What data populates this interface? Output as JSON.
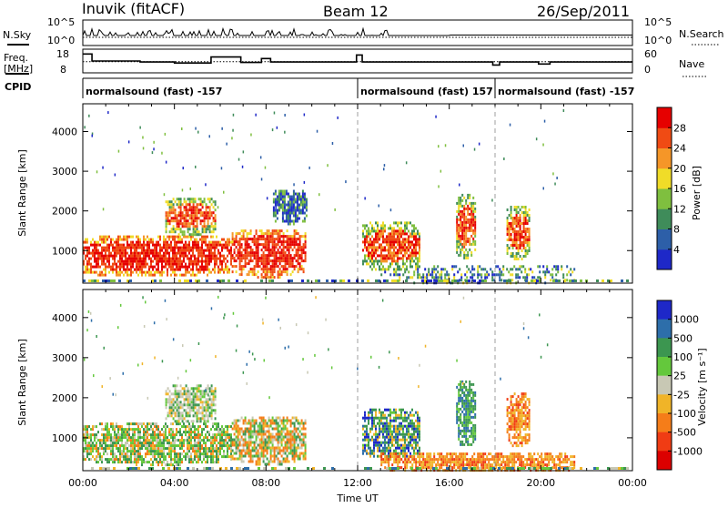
{
  "header": {
    "station": "Inuvik (fitACF)",
    "beam": "Beam 12",
    "date": "26/Sep/2011"
  },
  "noise_panel": {
    "left_label": "N.Sky",
    "right_label": "N.Search",
    "left_ticks": [
      "10^5",
      "10^0"
    ],
    "right_ticks": [
      "10^5",
      "10^0"
    ]
  },
  "freq_panel": {
    "left_label_1": "Freq.",
    "left_label_2": "[MHz]",
    "right_label": "Nave",
    "left_ticks": [
      "18",
      "8"
    ],
    "right_ticks": [
      "60",
      "0"
    ],
    "freq_scale": [
      8,
      18
    ],
    "nave_scale": [
      0,
      60
    ],
    "freq_steps": [
      {
        "t": 0.0,
        "v": 16.5
      },
      {
        "t": 0.4,
        "v": 13.0
      },
      {
        "t": 2.5,
        "v": 12.5
      },
      {
        "t": 4.0,
        "v": 12.0
      },
      {
        "t": 5.6,
        "v": 15.0
      },
      {
        "t": 6.9,
        "v": 12.3
      },
      {
        "t": 7.8,
        "v": 14.2
      },
      {
        "t": 8.2,
        "v": 12.5
      },
      {
        "t": 11.95,
        "v": 16.0
      },
      {
        "t": 12.2,
        "v": 12.5
      },
      {
        "t": 17.9,
        "v": 11.0
      },
      {
        "t": 18.2,
        "v": 12.5
      },
      {
        "t": 19.9,
        "v": 11.5
      },
      {
        "t": 20.4,
        "v": 12.5
      },
      {
        "t": 24.0,
        "v": 12.5
      }
    ],
    "nave_level": 28
  },
  "cpid": {
    "label": "CPID",
    "segments": [
      {
        "text": "normalsound (fast) -157",
        "start": 0.0
      },
      {
        "text": "normalsound (fast) 157",
        "start": 12.0
      },
      {
        "text": "normalsound (fast) -157",
        "start": 18.0
      }
    ]
  },
  "chart_data": [
    {
      "type": "heatmap",
      "quantity": "power",
      "xlabel": "",
      "ylabel": "Slant Range [km]",
      "xlim": [
        0,
        24
      ],
      "ylim": [
        180,
        4700
      ],
      "yticks": [
        1000,
        2000,
        3000,
        4000
      ],
      "colorbar": {
        "label": "Power [dB]",
        "range": [
          0,
          32
        ],
        "tick_labels": [
          "4",
          "8",
          "12",
          "16",
          "20",
          "24",
          "28"
        ],
        "tick_values": [
          4,
          8,
          12,
          16,
          20,
          24,
          28
        ],
        "colors": [
          "#1e28c8",
          "#2d5fa8",
          "#3f8c5a",
          "#7fbf3f",
          "#f0dc28",
          "#f59628",
          "#f04b14",
          "#e60000"
        ]
      },
      "echo_regions": [
        {
          "t0": 0.0,
          "t1": 6.5,
          "r0": 350,
          "r1": 1450,
          "level": "strong"
        },
        {
          "t0": 6.5,
          "t1": 9.7,
          "r0": 350,
          "r1": 1600,
          "level": "strong"
        },
        {
          "t0": 3.6,
          "t1": 5.8,
          "r0": 1400,
          "r1": 2400,
          "level": "medium"
        },
        {
          "t0": 8.3,
          "t1": 9.8,
          "r0": 1700,
          "r1": 2600,
          "level": "weak"
        },
        {
          "t0": 12.2,
          "t1": 14.7,
          "r0": 500,
          "r1": 1800,
          "level": "medium"
        },
        {
          "t0": 16.3,
          "t1": 17.1,
          "r0": 800,
          "r1": 2500,
          "level": "medium"
        },
        {
          "t0": 18.5,
          "t1": 19.5,
          "r0": 800,
          "r1": 2200,
          "level": "medium"
        },
        {
          "t0": 13.0,
          "t1": 21.5,
          "r0": 180,
          "r1": 700,
          "level": "low"
        }
      ]
    },
    {
      "type": "heatmap",
      "quantity": "velocity",
      "xlabel": "Time UT",
      "ylabel": "Slant Range [km]",
      "xlim": [
        0,
        24
      ],
      "ylim": [
        180,
        4700
      ],
      "yticks": [
        1000,
        2000,
        3000,
        4000
      ],
      "xticks": [
        0,
        4,
        8,
        12,
        16,
        20,
        24
      ],
      "xtick_labels": [
        "00:00",
        "04:00",
        "08:00",
        "12:00",
        "16:00",
        "20:00",
        "00:00"
      ],
      "colorbar": {
        "label": "Velocity [m s⁻¹]",
        "tick_labels": [
          "1000",
          "500",
          "100",
          "25",
          "-25",
          "-100",
          "-500",
          "-1000"
        ],
        "colors": [
          "#1e28c8",
          "#2d6eaa",
          "#3c9650",
          "#64c83c",
          "#c8c8b4",
          "#f0b428",
          "#f57d19",
          "#f03c14",
          "#dc0000"
        ]
      },
      "echo_regions": [
        {
          "t0": 0.0,
          "t1": 6.5,
          "r0": 350,
          "r1": 1450,
          "level": "green-orange"
        },
        {
          "t0": 6.5,
          "t1": 9.7,
          "r0": 350,
          "r1": 1600,
          "level": "orange-green"
        },
        {
          "t0": 3.6,
          "t1": 5.8,
          "r0": 1400,
          "r1": 2400,
          "level": "grey-green"
        },
        {
          "t0": 12.2,
          "t1": 14.7,
          "r0": 500,
          "r1": 1800,
          "level": "green-blue"
        },
        {
          "t0": 16.3,
          "t1": 17.1,
          "r0": 800,
          "r1": 2500,
          "level": "green"
        },
        {
          "t0": 18.5,
          "t1": 19.5,
          "r0": 800,
          "r1": 2200,
          "level": "orange"
        },
        {
          "t0": 13.0,
          "t1": 21.5,
          "r0": 180,
          "r1": 700,
          "level": "orange"
        }
      ]
    }
  ]
}
